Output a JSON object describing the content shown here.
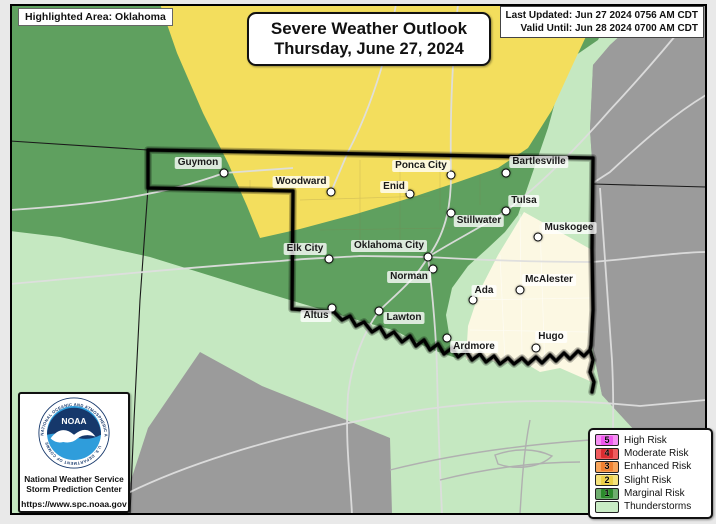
{
  "header": {
    "highlighted": "Highlighted Area: Oklahoma",
    "title_line1": "Severe Weather Outlook",
    "title_line2": "Thursday, June 27, 2024",
    "last_updated": "Last Updated: Jun 27 2024 0756 AM CDT",
    "valid_until": "Valid Until: Jun 28 2024 0700 AM CDT"
  },
  "footer": {
    "logo_text": "NOAA",
    "logo_ring_top": "NATIONAL OCEANIC AND ATMOSPHERIC ADMINISTRATION",
    "logo_ring_bottom": "U.S. DEPARTMENT OF COMMERCE",
    "org_line1": "National Weather Service",
    "org_line2": "Storm Prediction Center",
    "url": "https://www.spc.noaa.gov"
  },
  "legend": {
    "entries": [
      {
        "num": "5",
        "label": "High Risk",
        "fill": "#f590f2",
        "dark": "#ee55ee"
      },
      {
        "num": "4",
        "label": "Moderate Risk",
        "fill": "#f05c5e",
        "dark": "#d92b2f"
      },
      {
        "num": "3",
        "label": "Enhanced Risk",
        "fill": "#f8a55c",
        "dark": "#f08030"
      },
      {
        "num": "2",
        "label": "Slight Risk",
        "fill": "#f6e37c",
        "dark": "#eed046"
      },
      {
        "num": "1",
        "label": "Marginal Risk",
        "fill": "#6fae6f",
        "dark": "#2b8a2b"
      },
      {
        "num": "",
        "label": "Thunderstorms",
        "fill": "#c9ecc5",
        "dark": ""
      }
    ]
  },
  "map": {
    "colors": {
      "outside_gray": "#9b9b9b",
      "thunderstorms": "#c5e8c1",
      "marginal": "#5fa05f",
      "slight": "#f3de5d",
      "no_outlook": "#fcf8e3"
    },
    "cities": [
      {
        "name": "Guymon",
        "dot": [
          224,
          173
        ],
        "label": [
          198,
          163
        ]
      },
      {
        "name": "Woodward",
        "dot": [
          331,
          192
        ],
        "label": [
          301,
          182
        ]
      },
      {
        "name": "Ponca City",
        "dot": [
          451,
          175
        ],
        "label": [
          421,
          166
        ]
      },
      {
        "name": "Enid",
        "dot": [
          410,
          194
        ],
        "label": [
          394,
          187
        ]
      },
      {
        "name": "Bartlesville",
        "dot": [
          506,
          173
        ],
        "label": [
          539,
          162
        ]
      },
      {
        "name": "Tulsa",
        "dot": [
          506,
          211
        ],
        "label": [
          524,
          201
        ]
      },
      {
        "name": "Stillwater",
        "dot": [
          451,
          213
        ],
        "label": [
          479,
          221
        ]
      },
      {
        "name": "Muskogee",
        "dot": [
          538,
          237
        ],
        "label": [
          569,
          228
        ]
      },
      {
        "name": "Elk City",
        "dot": [
          329,
          259
        ],
        "label": [
          305,
          249
        ]
      },
      {
        "name": "Oklahoma City",
        "dot": [
          428,
          257
        ],
        "label": [
          389,
          246
        ]
      },
      {
        "name": "Norman",
        "dot": [
          433,
          269
        ],
        "label": [
          409,
          277
        ]
      },
      {
        "name": "Ada",
        "dot": [
          473,
          300
        ],
        "label": [
          484,
          291
        ]
      },
      {
        "name": "McAlester",
        "dot": [
          520,
          290
        ],
        "label": [
          549,
          280
        ]
      },
      {
        "name": "Altus",
        "dot": [
          332,
          308
        ],
        "label": [
          316,
          316
        ]
      },
      {
        "name": "Lawton",
        "dot": [
          379,
          311
        ],
        "label": [
          404,
          318
        ]
      },
      {
        "name": "Ardmore",
        "dot": [
          447,
          338
        ],
        "label": [
          474,
          347
        ]
      },
      {
        "name": "Hugo",
        "dot": [
          536,
          348
        ],
        "label": [
          551,
          337
        ]
      }
    ]
  }
}
